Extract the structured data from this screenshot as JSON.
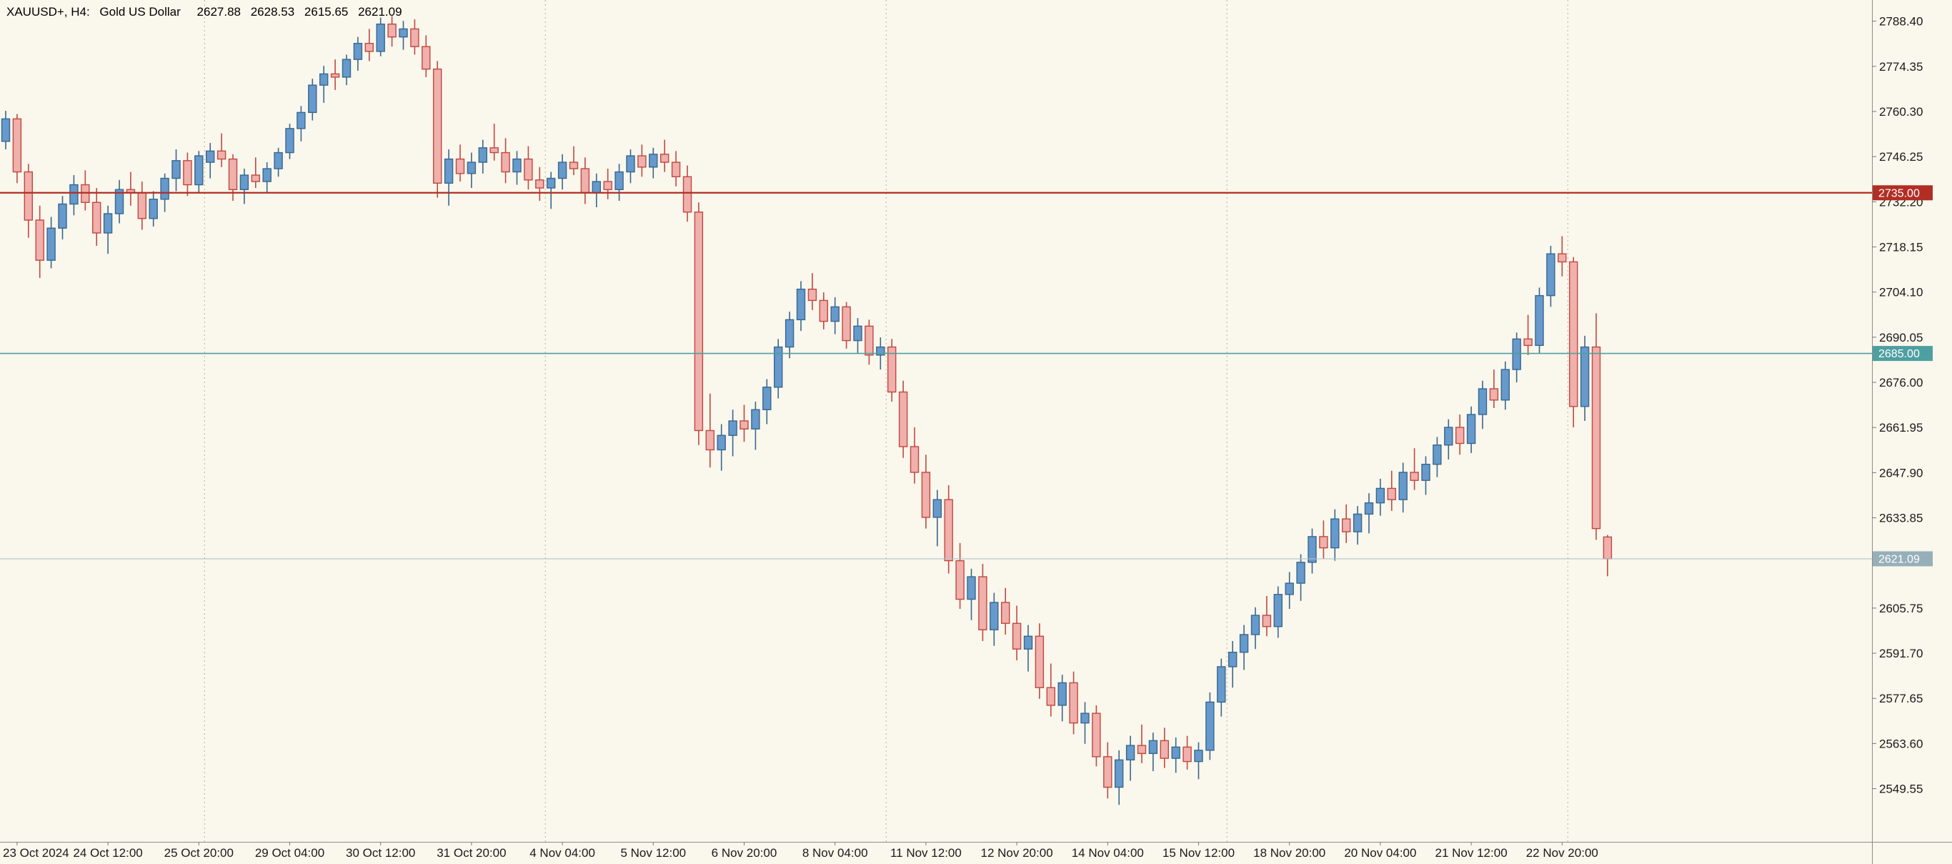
{
  "header": {
    "symbol": "XAUUSD+, H4:",
    "description": "Gold US Dollar",
    "open": "2627.88",
    "high": "2628.53",
    "low": "2615.65",
    "close": "2621.09"
  },
  "theme": {
    "background": "#FAF7EC",
    "grid": "#B9AF9C",
    "axis_line": "#8C8C8C",
    "tick": "#777777",
    "text": "#1A1A1A",
    "tag_text": "#FFFFFF",
    "candle_up_fill": "#6699CC",
    "candle_up_border": "#38688F",
    "candle_down_fill": "#F0B0AC",
    "candle_down_border": "#C14840"
  },
  "chart_data": {
    "type": "candlestick",
    "title": "XAUUSD+, H4: Gold US Dollar",
    "symbol": "XAUUSD+",
    "timeframe": "H4",
    "ylim": [
      2533,
      2795
    ],
    "grid": "vertical-week-separators-only",
    "price_axis": {
      "step": 14.05,
      "labels": [
        2788.4,
        2774.35,
        2760.3,
        2746.25,
        2732.2,
        2718.15,
        2704.1,
        2690.05,
        2676.0,
        2661.95,
        2647.9,
        2633.85,
        2605.75,
        2591.7,
        2577.65,
        2563.6,
        2549.55
      ]
    },
    "time_axis": {
      "labels": [
        {
          "text": "23 Oct 2024",
          "i": 1
        },
        {
          "text": "24 Oct 12:00",
          "i": 9
        },
        {
          "text": "25 Oct 20:00",
          "i": 17
        },
        {
          "text": "29 Oct 04:00",
          "i": 25
        },
        {
          "text": "30 Oct 12:00",
          "i": 33
        },
        {
          "text": "31 Oct 20:00",
          "i": 41
        },
        {
          "text": "4 Nov 04:00",
          "i": 49
        },
        {
          "text": "5 Nov 12:00",
          "i": 57
        },
        {
          "text": "6 Nov 20:00",
          "i": 65
        },
        {
          "text": "8 Nov 04:00",
          "i": 73
        },
        {
          "text": "11 Nov 12:00",
          "i": 81
        },
        {
          "text": "12 Nov 20:00",
          "i": 89
        },
        {
          "text": "14 Nov 04:00",
          "i": 97
        },
        {
          "text": "15 Nov 12:00",
          "i": 105
        },
        {
          "text": "18 Nov 20:00",
          "i": 113
        },
        {
          "text": "20 Nov 04:00",
          "i": 121
        },
        {
          "text": "21 Nov 12:00",
          "i": 129
        },
        {
          "text": "22 Nov 20:00",
          "i": 137
        }
      ]
    },
    "week_separators": [
      18,
      48,
      78,
      108,
      138
    ],
    "hlines": [
      {
        "name": "hline-2735",
        "price": 2735.0,
        "label": "2735.00",
        "color": "#B02E24",
        "width": 2.2,
        "tag_bg": "#B02E24"
      },
      {
        "name": "hline-2685",
        "price": 2685.0,
        "label": "2685.00",
        "color": "#4E9FA1",
        "width": 1.6,
        "tag_bg": "#4E9FA1"
      },
      {
        "name": "current-price-line",
        "price": 2621.09,
        "label": "2621.09",
        "color": "#AFC5CC",
        "width": 1.2,
        "tag_bg": "#96AFB8"
      }
    ],
    "candles": [
      [
        2751.0,
        2760.5,
        2748.5,
        2758.0
      ],
      [
        2758.0,
        2759.5,
        2738.0,
        2741.5
      ],
      [
        2741.5,
        2744.0,
        2721.0,
        2726.5
      ],
      [
        2726.5,
        2731.0,
        2708.5,
        2714.0
      ],
      [
        2714.0,
        2727.5,
        2711.5,
        2724.0
      ],
      [
        2724.0,
        2734.0,
        2720.5,
        2731.5
      ],
      [
        2731.5,
        2740.5,
        2728.0,
        2737.5
      ],
      [
        2737.5,
        2742.0,
        2729.5,
        2732.0
      ],
      [
        2732.0,
        2736.5,
        2718.5,
        2722.5
      ],
      [
        2722.5,
        2731.0,
        2716.0,
        2728.5
      ],
      [
        2728.5,
        2739.0,
        2725.5,
        2736.0
      ],
      [
        2736.0,
        2741.5,
        2731.0,
        2735.0
      ],
      [
        2735.0,
        2738.5,
        2723.5,
        2727.0
      ],
      [
        2727.0,
        2735.5,
        2724.5,
        2733.0
      ],
      [
        2733.0,
        2741.0,
        2729.0,
        2739.5
      ],
      [
        2739.5,
        2748.5,
        2735.5,
        2745.0
      ],
      [
        2745.0,
        2747.5,
        2734.0,
        2737.5
      ],
      [
        2737.5,
        2748.0,
        2735.0,
        2746.5
      ],
      [
        2744.5,
        2750.5,
        2739.5,
        2748.0
      ],
      [
        2748.0,
        2753.5,
        2743.0,
        2745.5
      ],
      [
        2745.5,
        2747.0,
        2732.5,
        2736.0
      ],
      [
        2736.0,
        2742.5,
        2731.5,
        2740.5
      ],
      [
        2740.5,
        2746.0,
        2736.5,
        2738.5
      ],
      [
        2738.5,
        2744.5,
        2735.0,
        2742.5
      ],
      [
        2742.5,
        2749.0,
        2740.0,
        2747.5
      ],
      [
        2747.5,
        2756.5,
        2745.5,
        2755.0
      ],
      [
        2755.0,
        2762.0,
        2751.0,
        2760.0
      ],
      [
        2760.0,
        2770.5,
        2757.5,
        2768.5
      ],
      [
        2768.5,
        2774.5,
        2763.0,
        2772.0
      ],
      [
        2772.0,
        2776.5,
        2767.0,
        2771.0
      ],
      [
        2771.0,
        2778.0,
        2768.5,
        2776.5
      ],
      [
        2776.5,
        2783.5,
        2773.0,
        2781.5
      ],
      [
        2781.5,
        2786.0,
        2776.0,
        2779.0
      ],
      [
        2779.0,
        2789.5,
        2777.5,
        2787.5
      ],
      [
        2787.5,
        2790.0,
        2780.5,
        2783.5
      ],
      [
        2783.5,
        2788.5,
        2779.5,
        2786.0
      ],
      [
        2786.0,
        2789.0,
        2778.0,
        2780.5
      ],
      [
        2780.5,
        2784.0,
        2771.0,
        2773.5
      ],
      [
        2773.5,
        2776.0,
        2733.5,
        2738.0
      ],
      [
        2738.0,
        2748.5,
        2731.0,
        2745.5
      ],
      [
        2745.5,
        2750.0,
        2738.5,
        2741.0
      ],
      [
        2741.0,
        2747.5,
        2736.5,
        2744.5
      ],
      [
        2744.5,
        2751.5,
        2741.0,
        2749.0
      ],
      [
        2749.0,
        2756.5,
        2745.0,
        2747.5
      ],
      [
        2747.5,
        2752.0,
        2738.0,
        2741.5
      ],
      [
        2741.5,
        2748.0,
        2737.5,
        2745.5
      ],
      [
        2745.5,
        2749.5,
        2736.0,
        2739.0
      ],
      [
        2739.0,
        2743.0,
        2732.5,
        2736.5
      ],
      [
        2736.5,
        2741.5,
        2730.0,
        2739.5
      ],
      [
        2739.5,
        2747.0,
        2736.0,
        2744.5
      ],
      [
        2744.5,
        2749.5,
        2740.5,
        2742.5
      ],
      [
        2742.5,
        2746.0,
        2731.5,
        2735.0
      ],
      [
        2735.0,
        2741.0,
        2730.5,
        2738.5
      ],
      [
        2738.5,
        2742.5,
        2733.0,
        2736.0
      ],
      [
        2736.0,
        2744.0,
        2732.5,
        2741.5
      ],
      [
        2741.5,
        2748.5,
        2738.0,
        2746.5
      ],
      [
        2746.5,
        2750.0,
        2740.0,
        2743.0
      ],
      [
        2743.0,
        2749.0,
        2739.5,
        2747.0
      ],
      [
        2747.0,
        2751.5,
        2741.5,
        2744.5
      ],
      [
        2744.5,
        2748.0,
        2737.0,
        2740.0
      ],
      [
        2740.0,
        2743.5,
        2726.0,
        2729.0
      ],
      [
        2729.0,
        2732.0,
        2656.5,
        2661.0
      ],
      [
        2661.0,
        2672.5,
        2649.5,
        2655.0
      ],
      [
        2655.0,
        2663.0,
        2648.5,
        2659.5
      ],
      [
        2659.5,
        2667.5,
        2653.0,
        2664.0
      ],
      [
        2664.0,
        2669.0,
        2657.5,
        2661.5
      ],
      [
        2661.5,
        2670.0,
        2655.0,
        2667.5
      ],
      [
        2667.5,
        2677.0,
        2663.0,
        2674.5
      ],
      [
        2674.5,
        2689.5,
        2671.0,
        2687.0
      ],
      [
        2687.0,
        2698.0,
        2683.5,
        2695.5
      ],
      [
        2695.5,
        2707.5,
        2692.0,
        2705.0
      ],
      [
        2705.0,
        2710.0,
        2698.5,
        2701.5
      ],
      [
        2701.5,
        2704.0,
        2692.5,
        2695.0
      ],
      [
        2695.0,
        2702.5,
        2691.0,
        2699.5
      ],
      [
        2699.5,
        2701.0,
        2686.5,
        2689.0
      ],
      [
        2689.0,
        2696.0,
        2685.0,
        2693.5
      ],
      [
        2693.5,
        2695.5,
        2681.5,
        2684.5
      ],
      [
        2684.5,
        2690.0,
        2680.0,
        2687.0
      ],
      [
        2687.0,
        2689.5,
        2670.0,
        2673.0
      ],
      [
        2673.0,
        2676.5,
        2652.5,
        2656.0
      ],
      [
        2656.0,
        2662.0,
        2644.5,
        2648.0
      ],
      [
        2648.0,
        2653.5,
        2630.5,
        2634.0
      ],
      [
        2634.0,
        2642.5,
        2625.0,
        2639.5
      ],
      [
        2639.5,
        2644.0,
        2616.5,
        2620.5
      ],
      [
        2620.5,
        2626.0,
        2605.5,
        2608.5
      ],
      [
        2608.5,
        2618.0,
        2602.0,
        2615.5
      ],
      [
        2615.5,
        2619.5,
        2595.5,
        2599.0
      ],
      [
        2599.0,
        2610.5,
        2594.0,
        2607.5
      ],
      [
        2607.5,
        2612.0,
        2597.5,
        2601.0
      ],
      [
        2601.0,
        2606.5,
        2589.5,
        2593.0
      ],
      [
        2593.0,
        2600.5,
        2586.0,
        2597.0
      ],
      [
        2597.0,
        2601.0,
        2577.5,
        2581.0
      ],
      [
        2581.0,
        2588.5,
        2572.0,
        2575.5
      ],
      [
        2575.5,
        2585.0,
        2570.5,
        2582.5
      ],
      [
        2582.5,
        2586.0,
        2566.5,
        2570.0
      ],
      [
        2570.0,
        2576.5,
        2563.5,
        2573.0
      ],
      [
        2573.0,
        2575.5,
        2556.5,
        2559.5
      ],
      [
        2559.5,
        2564.0,
        2546.5,
        2550.0
      ],
      [
        2550.0,
        2561.5,
        2544.5,
        2558.5
      ],
      [
        2558.5,
        2566.0,
        2552.0,
        2563.0
      ],
      [
        2563.0,
        2569.5,
        2557.5,
        2560.5
      ],
      [
        2560.5,
        2567.0,
        2555.0,
        2564.5
      ],
      [
        2564.5,
        2568.5,
        2556.0,
        2559.0
      ],
      [
        2559.0,
        2565.5,
        2554.5,
        2562.5
      ],
      [
        2562.5,
        2566.0,
        2555.5,
        2558.0
      ],
      [
        2558.0,
        2564.0,
        2552.5,
        2561.5
      ],
      [
        2561.5,
        2579.5,
        2558.5,
        2576.5
      ],
      [
        2576.5,
        2590.0,
        2572.0,
        2587.5
      ],
      [
        2587.5,
        2595.5,
        2581.0,
        2592.0
      ],
      [
        2592.0,
        2600.5,
        2586.5,
        2597.5
      ],
      [
        2597.5,
        2606.0,
        2593.0,
        2603.5
      ],
      [
        2603.5,
        2609.5,
        2597.0,
        2600.0
      ],
      [
        2600.0,
        2612.5,
        2596.5,
        2610.0
      ],
      [
        2610.0,
        2617.0,
        2605.5,
        2613.5
      ],
      [
        2613.5,
        2622.5,
        2608.0,
        2620.0
      ],
      [
        2620.0,
        2630.5,
        2616.5,
        2628.0
      ],
      [
        2628.0,
        2633.0,
        2621.0,
        2624.5
      ],
      [
        2624.5,
        2636.5,
        2620.5,
        2633.5
      ],
      [
        2633.5,
        2638.0,
        2626.0,
        2629.5
      ],
      [
        2629.5,
        2637.5,
        2625.5,
        2635.0
      ],
      [
        2635.0,
        2641.5,
        2629.0,
        2638.5
      ],
      [
        2638.5,
        2646.0,
        2634.5,
        2643.0
      ],
      [
        2643.0,
        2648.5,
        2636.0,
        2639.5
      ],
      [
        2639.5,
        2651.0,
        2635.5,
        2648.0
      ],
      [
        2648.0,
        2655.5,
        2642.5,
        2645.5
      ],
      [
        2645.5,
        2653.0,
        2641.0,
        2650.5
      ],
      [
        2650.5,
        2659.0,
        2646.5,
        2656.5
      ],
      [
        2656.5,
        2664.5,
        2652.0,
        2662.0
      ],
      [
        2662.0,
        2666.0,
        2653.5,
        2657.0
      ],
      [
        2657.0,
        2668.5,
        2654.0,
        2666.0
      ],
      [
        2666.0,
        2676.5,
        2661.5,
        2674.0
      ],
      [
        2674.0,
        2680.0,
        2668.0,
        2670.5
      ],
      [
        2670.5,
        2682.5,
        2667.5,
        2680.0
      ],
      [
        2680.0,
        2691.5,
        2676.0,
        2689.5
      ],
      [
        2689.5,
        2697.0,
        2684.5,
        2687.5
      ],
      [
        2687.5,
        2705.5,
        2685.0,
        2703.0
      ],
      [
        2703.0,
        2718.5,
        2699.5,
        2716.0
      ],
      [
        2716.0,
        2721.5,
        2709.0,
        2713.5
      ],
      [
        2713.5,
        2715.0,
        2662.0,
        2668.5
      ],
      [
        2668.5,
        2690.5,
        2664.0,
        2687.0
      ],
      [
        2687.0,
        2697.5,
        2627.0,
        2630.5
      ],
      [
        2627.88,
        2628.53,
        2615.65,
        2621.09
      ]
    ]
  }
}
